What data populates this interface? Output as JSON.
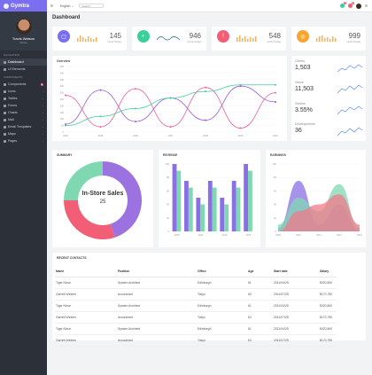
{
  "brand": {
    "name": "Gymtra"
  },
  "profile": {
    "name": "Travis Watson",
    "role": "Admin"
  },
  "sidebar": {
    "section1": "NAVIGATION",
    "section2": "COMPONENTS",
    "nav": [
      {
        "label": "Dashboard",
        "active": true
      },
      {
        "label": "UI Elements",
        "active": false
      }
    ],
    "components": [
      {
        "label": "Components",
        "badge": "9"
      },
      {
        "label": "Icons"
      },
      {
        "label": "Tables"
      },
      {
        "label": "Forms"
      },
      {
        "label": "Charts"
      },
      {
        "label": "Mail"
      },
      {
        "label": "Email Templates"
      },
      {
        "label": "Maps"
      },
      {
        "label": "Pages"
      }
    ]
  },
  "topbar": {
    "language": "English ⌄",
    "search_placeholder": "Search",
    "badge_a": "4",
    "badge_b": "9",
    "badge_c": "2"
  },
  "page": {
    "title": "Dashboard"
  },
  "stats": [
    {
      "value": "145",
      "label": "Units Today",
      "color": "#7a6ff0"
    },
    {
      "value": "946",
      "label": "Units Today",
      "color": "#3ccf9a"
    },
    {
      "value": "548",
      "label": "Units Today",
      "color": "#f25e76"
    },
    {
      "value": "999",
      "label": "Units Today",
      "color": "#f7a531"
    }
  ],
  "overview": {
    "title": "Overview"
  },
  "side_stats": [
    {
      "label": "Clients",
      "value": "1,503"
    },
    {
      "label": "Views",
      "value": "11,503"
    },
    {
      "label": "Visitors",
      "value": "3.55%"
    },
    {
      "label": "Developments",
      "value": "36"
    }
  ],
  "summary": {
    "title": "SUMMARY",
    "center_label": "In-Store Sales",
    "center_value": "25"
  },
  "revenue": {
    "title": "REVENUE"
  },
  "earnings": {
    "title": "EARNINGS"
  },
  "contacts": {
    "title": "RECENT CONTACTS",
    "headers": [
      "Name",
      "Position",
      "Office",
      "Age",
      "Start date",
      "Salary"
    ],
    "rows": [
      [
        "Tiger Nixon",
        "System Architect",
        "Edinburgh",
        "61",
        "2011/04/25",
        "$320,800"
      ],
      [
        "Garrett Winters",
        "Accountant",
        "Tokyo",
        "63",
        "2011/07/25",
        "$170,750"
      ],
      [
        "Tiger Nixon",
        "System Architect",
        "Edinburgh",
        "61",
        "2011/04/25",
        "$320,800"
      ],
      [
        "Garrett Winters",
        "Accountant",
        "Tokyo",
        "63",
        "2011/07/25",
        "$170,750"
      ],
      [
        "Tiger Nixon",
        "System Architect",
        "Edinburgh",
        "61",
        "2011/04/25",
        "$320,800"
      ],
      [
        "Garrett Winters",
        "Accountant",
        "Tokyo",
        "63",
        "2011/07/25",
        "$170,750"
      ]
    ]
  },
  "chart_data": [
    {
      "type": "line",
      "title": "Overview",
      "x": [
        "2004",
        "2005",
        "2006",
        "2007",
        "2008",
        "2009",
        "2010"
      ],
      "ylim": [
        0,
        500
      ],
      "yticks": [
        "500",
        "450",
        "400",
        "350",
        "300",
        "250",
        "200",
        "150",
        "100",
        "50",
        "0"
      ],
      "series": [
        {
          "color": "#9b59d9",
          "values": [
            60,
            320,
            80,
            260,
            90,
            350,
            230
          ]
        },
        {
          "color": "#f25e99",
          "values": [
            280,
            40,
            330,
            40,
            340,
            30,
            300
          ]
        },
        {
          "color": "#3ccf9a",
          "values": [
            50,
            120,
            180,
            260,
            310,
            360,
            360
          ]
        }
      ]
    },
    {
      "type": "bar",
      "title": "REVENUE",
      "categories": [
        "2009",
        "2010",
        "2011",
        "2012",
        "2013",
        "2014",
        "2015"
      ],
      "ylim": [
        0,
        100
      ],
      "yticks": [
        "100",
        "80",
        "60",
        "40",
        "20",
        "0"
      ],
      "series": [
        {
          "color": "#8a6fe6",
          "values": [
            100,
            75,
            50,
            75,
            50,
            75,
            100
          ]
        },
        {
          "color": "#7fd8b2",
          "values": [
            90,
            65,
            40,
            65,
            40,
            65,
            90
          ]
        }
      ]
    },
    {
      "type": "pie",
      "title": "SUMMARY",
      "values": [
        45,
        30,
        25
      ],
      "colors": [
        "#9b72e0",
        "#f25e76",
        "#7fd8b2"
      ]
    },
    {
      "type": "area",
      "title": "EARNINGS",
      "x": [
        "2009",
        "2010",
        "2011",
        "2012",
        "2013"
      ],
      "ylim": [
        0,
        100
      ],
      "yticks": [
        "100",
        "80",
        "60",
        "40",
        "20",
        "0"
      ],
      "series": [
        {
          "color": "#8a6fe6",
          "values": [
            5,
            75,
            10,
            40,
            0
          ]
        },
        {
          "color": "#7fd8b2",
          "values": [
            10,
            50,
            30,
            70,
            5
          ]
        },
        {
          "color": "#f27a8a",
          "values": [
            0,
            30,
            40,
            55,
            10
          ]
        }
      ]
    }
  ]
}
